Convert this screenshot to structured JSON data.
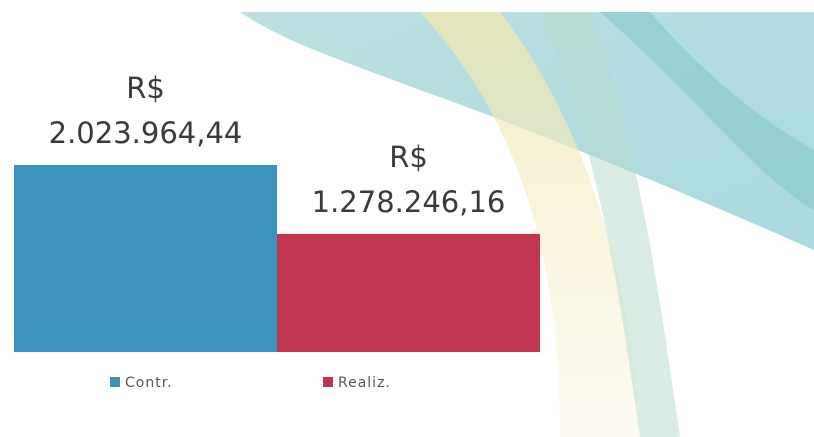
{
  "chart_data": {
    "type": "bar",
    "categories": [
      null
    ],
    "series": [
      {
        "name": "Contr.",
        "color": "#3b93bd",
        "values": [
          2023964.44
        ],
        "value_labels": [
          "R$ 2.023.964,44"
        ]
      },
      {
        "name": "Realiz.",
        "color": "#c0354f",
        "values": [
          1278246.16
        ],
        "value_labels": [
          "R$ 1.278.246,16"
        ]
      }
    ]
  }
}
